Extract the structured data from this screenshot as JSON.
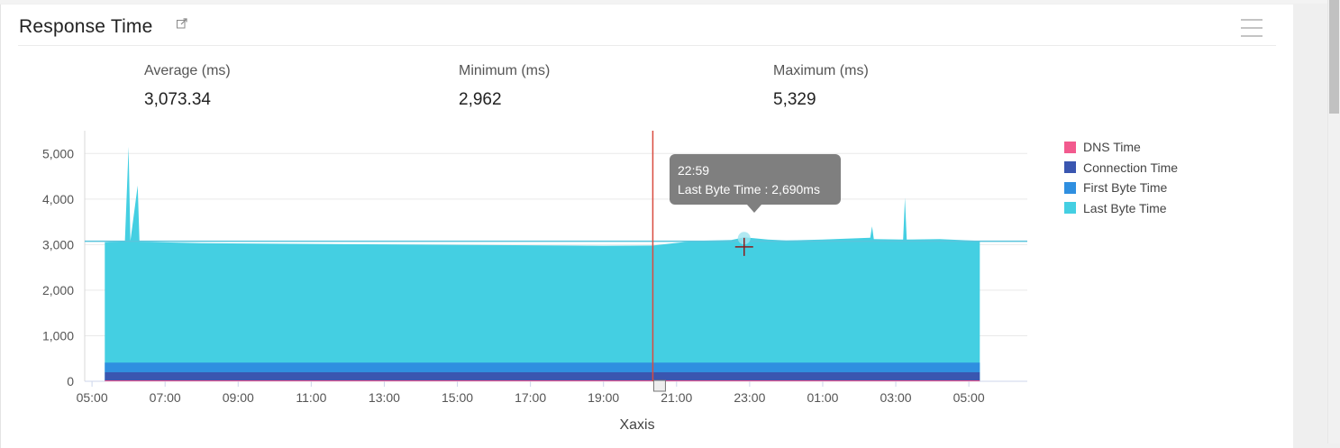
{
  "panel": {
    "title": "Response Time"
  },
  "stats": [
    {
      "label": "Average (ms)",
      "value": "3,073.34"
    },
    {
      "label": "Minimum (ms)",
      "value": "2,962"
    },
    {
      "label": "Maximum (ms)",
      "value": "5,329"
    }
  ],
  "tooltip": {
    "time": "22:59",
    "text": "Last Byte Time : 2,690ms"
  },
  "colors": {
    "dns": "#f25a8e",
    "connection": "#3a56b0",
    "first_byte": "#2f8fe0",
    "last_byte": "#44cfe2",
    "average_line": "#5ac4dc",
    "cursor_line": "#d94b3f"
  },
  "chart_data": {
    "type": "area",
    "stacked": true,
    "xlabel": "Xaxis",
    "ylabel": "",
    "ylim": [
      0,
      5500
    ],
    "yticks": [
      0,
      1000,
      2000,
      3000,
      4000,
      5000
    ],
    "ytick_labels": [
      "0",
      "1,000",
      "2,000",
      "3,000",
      "4,000",
      "5,000"
    ],
    "xtick_labels": [
      "05:00",
      "07:00",
      "09:00",
      "11:00",
      "13:00",
      "15:00",
      "17:00",
      "19:00",
      "21:00",
      "23:00",
      "01:00",
      "03:00",
      "05:00"
    ],
    "xlim_hours": [
      4.8,
      30.6
    ],
    "data_range_hours": [
      5.35,
      29.3
    ],
    "grid": true,
    "legend_position": "right",
    "average_line_value": 3073.34,
    "cursor_hour": 20.35,
    "crosshair": {
      "hour": 22.85,
      "value": 2950
    },
    "series": [
      {
        "name": "DNS Time",
        "approx_value": 20
      },
      {
        "name": "Connection Time",
        "approx_value": 180
      },
      {
        "name": "First Byte Time",
        "approx_value": 210
      },
      {
        "name": "Last Byte Time",
        "approx_value": 2640
      }
    ],
    "total_profile": [
      [
        5.35,
        3050
      ],
      [
        5.9,
        3070
      ],
      [
        6.0,
        5150
      ],
      [
        6.05,
        3080
      ],
      [
        6.25,
        4300
      ],
      [
        6.3,
        3060
      ],
      [
        8.0,
        3030
      ],
      [
        12.0,
        3010
      ],
      [
        16.0,
        2990
      ],
      [
        19.0,
        2975
      ],
      [
        20.35,
        2980
      ],
      [
        21.5,
        3080
      ],
      [
        22.5,
        3100
      ],
      [
        22.85,
        3160
      ],
      [
        23.5,
        3110
      ],
      [
        24.0,
        3090
      ],
      [
        25.0,
        3110
      ],
      [
        26.3,
        3150
      ],
      [
        26.35,
        3400
      ],
      [
        26.4,
        3120
      ],
      [
        27.2,
        3110
      ],
      [
        27.25,
        4030
      ],
      [
        27.3,
        3110
      ],
      [
        28.2,
        3120
      ],
      [
        29.3,
        3080
      ]
    ]
  }
}
